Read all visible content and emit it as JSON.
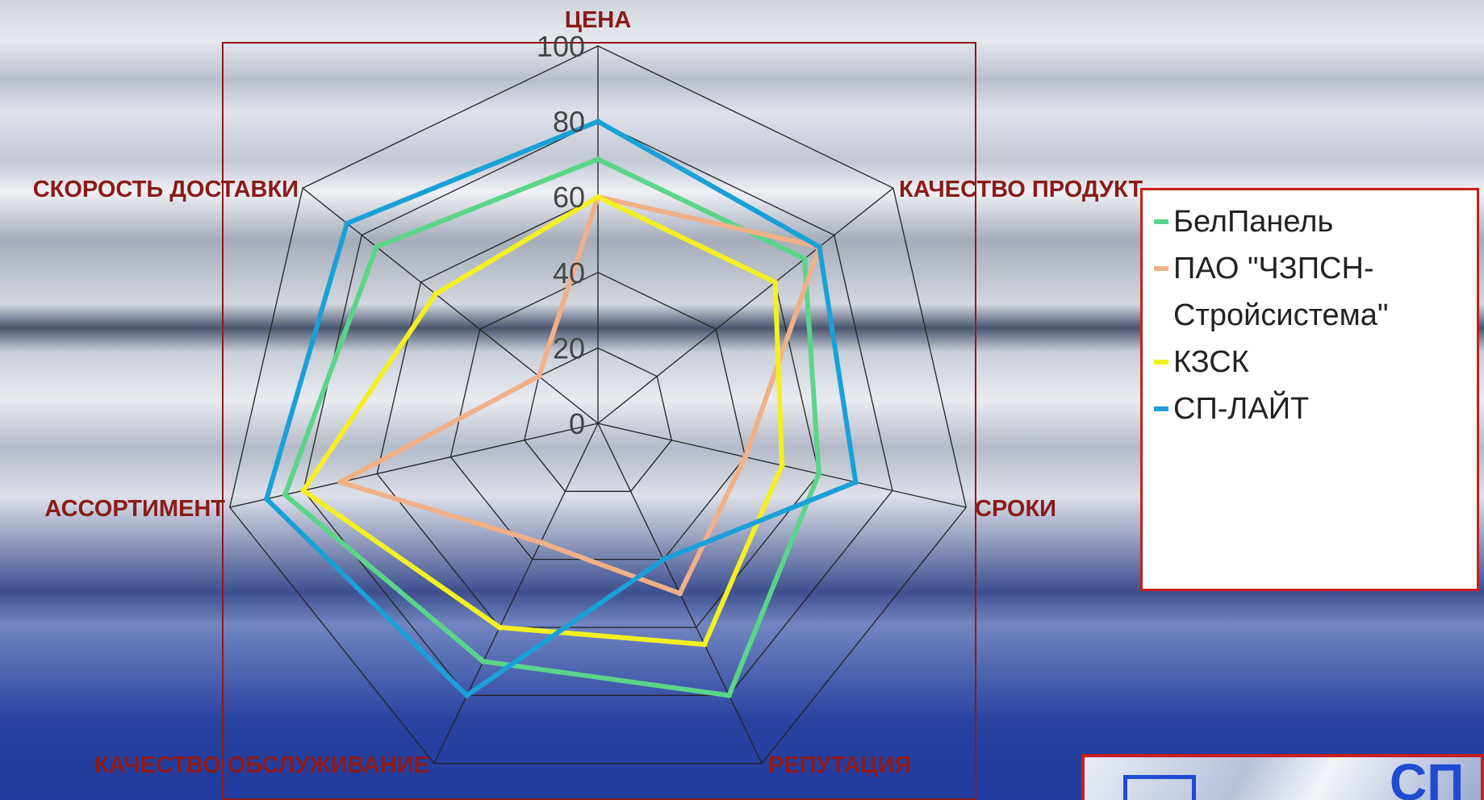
{
  "chart_data": {
    "type": "radar",
    "axes": [
      "ЦЕНА",
      "КАЧЕСТВО ПРОДУКТ",
      "СРОКИ",
      "РЕПУТАЦИЯ",
      "КАЧЕСТВО ОБСЛУЖИВАНИЕ",
      "АССОРТИМЕНТ",
      "СКОРОСТЬ ДОСТАВКИ"
    ],
    "ticks": [
      "0",
      "20",
      "40",
      "60",
      "80",
      "100"
    ],
    "range": [
      0,
      100
    ],
    "legend_position": "right",
    "series": [
      {
        "name": "БелПанель",
        "color": "#5ad58a",
        "values": [
          70,
          70,
          60,
          80,
          70,
          85,
          75
        ]
      },
      {
        "name": "ПАО \"ЧЗПСН-Стройсистема\"",
        "color": "#f0b088",
        "values": [
          60,
          75,
          40,
          50,
          35,
          70,
          20
        ]
      },
      {
        "name": " КЗСК",
        "color": "#f2f022",
        "values": [
          60,
          60,
          50,
          65,
          60,
          80,
          55
        ]
      },
      {
        "name": "СП-ЛАЙТ",
        "color": "#1aa0d8",
        "values": [
          80,
          75,
          70,
          40,
          80,
          90,
          85
        ]
      }
    ]
  },
  "logo": {
    "text": "СП"
  }
}
